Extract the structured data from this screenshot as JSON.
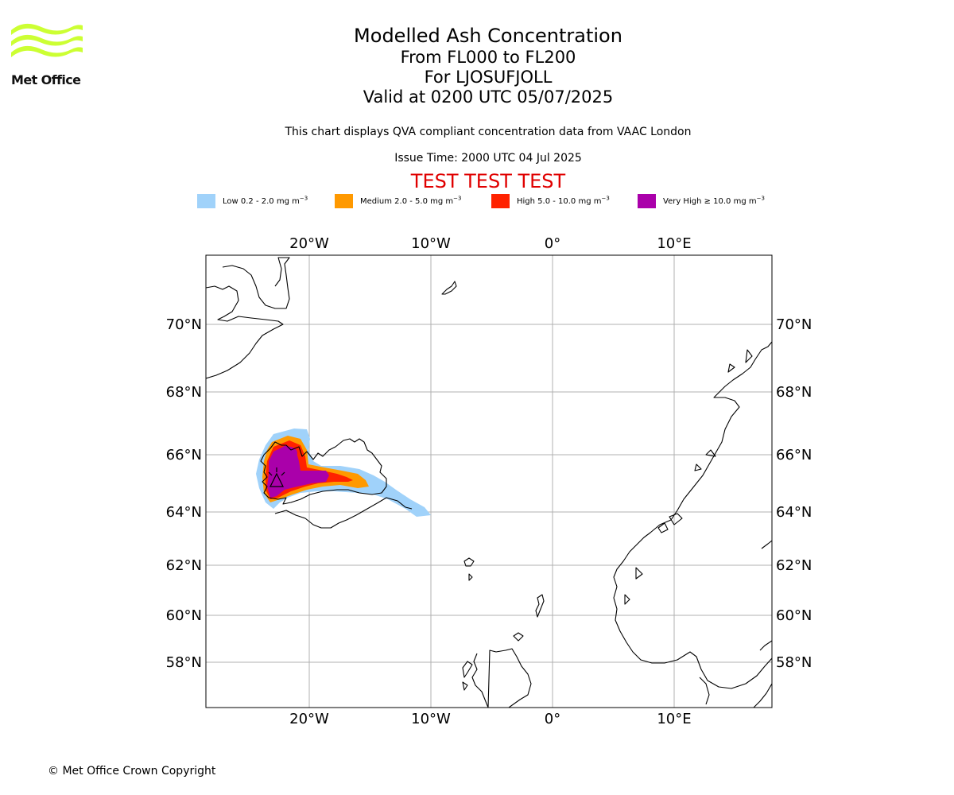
{
  "logo": {
    "name": "Met Office",
    "color": "#ccff33"
  },
  "header": {
    "title": "Modelled Ash Concentration",
    "levels": "From FL000 to FL200",
    "volcano": "For LJOSUFJOLL",
    "valid": "Valid at 0200 UTC 05/07/2025",
    "note": "This chart displays QVA compliant concentration data from VAAC London",
    "issue_time": "Issue Time: 2000 UTC 04 Jul 2025",
    "test_banner": "TEST TEST TEST"
  },
  "legend": {
    "unit": "mg m",
    "unit_exp": "−3",
    "items": [
      {
        "label": "Low 0.2 - 2.0",
        "color": "#a0d2fa"
      },
      {
        "label": "Medium 2.0 - 5.0",
        "color": "#ff9900"
      },
      {
        "label": "High 5.0 - 10.0",
        "color": "#ff2200"
      },
      {
        "label": "Very High  ≥  10.0",
        "color": "#aa00aa"
      }
    ]
  },
  "map": {
    "longitude_labels": [
      "20°W",
      "10°W",
      "0°",
      "10°E"
    ],
    "latitude_labels": [
      "70°N",
      "68°N",
      "66°N",
      "64°N",
      "62°N",
      "60°N",
      "58°N"
    ],
    "grid_color": "#b0b0b0",
    "coast_color": "#000000"
  },
  "footer": {
    "copyright": "© Met Office Crown Copyright"
  }
}
